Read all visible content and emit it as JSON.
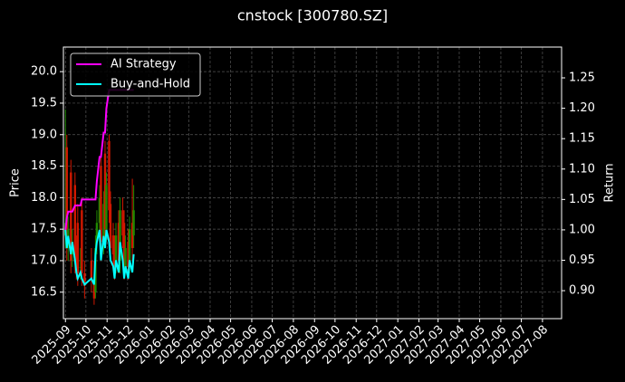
{
  "chart_data": {
    "type": "candlestick",
    "title": "cnstock [300780.SZ]",
    "ylabel": "Price",
    "y2label": "Return",
    "x": [
      "2025-09-01",
      "2025-09-03",
      "2025-09-05",
      "2025-09-09",
      "2025-09-11",
      "2025-09-15",
      "2025-09-17",
      "2025-09-19",
      "2025-09-23",
      "2025-09-25",
      "2025-09-29",
      "2025-10-09",
      "2025-10-13",
      "2025-10-15",
      "2025-10-17",
      "2025-10-21",
      "2025-10-23",
      "2025-10-27",
      "2025-10-29",
      "2025-10-31",
      "2025-11-04",
      "2025-11-06",
      "2025-11-10",
      "2025-11-12",
      "2025-11-14",
      "2025-11-18",
      "2025-11-20",
      "2025-11-24",
      "2025-11-26",
      "2025-11-28",
      "2025-12-02",
      "2025-12-04",
      "2025-12-08",
      "2025-12-10"
    ],
    "open": [
      17.4,
      18.8,
      17.2,
      18.4,
      17.1,
      18.2,
      17.1,
      17.6,
      16.9,
      17.8,
      16.8,
      17.0,
      16.7,
      16.5,
      17.3,
      17.6,
      18.5,
      17.3,
      18.7,
      17.5,
      18.9,
      17.9,
      17.4,
      17.2,
      16.9,
      17.6,
      17.0,
      17.8,
      17.6,
      16.9,
      17.3,
      16.9,
      17.6,
      17.4
    ],
    "high": [
      19.4,
      19.0,
      17.7,
      18.6,
      17.5,
      18.4,
      17.4,
      17.9,
      17.2,
      18.0,
      17.0,
      17.2,
      17.0,
      17.4,
      17.8,
      18.2,
      18.7,
      18.1,
      18.9,
      18.4,
      19.0,
      18.1,
      17.6,
      17.4,
      17.6,
      17.8,
      18.0,
      18.0,
      17.8,
      17.4,
      17.5,
      17.7,
      18.3,
      18.2
    ],
    "low": [
      17.2,
      17.0,
      17.0,
      16.8,
      16.9,
      16.8,
      16.7,
      16.6,
      16.7,
      16.6,
      16.4,
      16.5,
      16.3,
      16.4,
      17.1,
      17.4,
      17.1,
      17.1,
      17.3,
      17.3,
      17.6,
      17.0,
      16.9,
      16.7,
      16.8,
      16.8,
      16.8,
      17.2,
      16.7,
      16.8,
      16.7,
      16.8,
      17.0,
      17.2
    ],
    "close": [
      17.6,
      17.2,
      17.5,
      17.0,
      17.3,
      17.0,
      16.9,
      16.8,
      16.9,
      16.8,
      16.6,
      16.7,
      16.4,
      17.2,
      17.6,
      18.0,
      17.3,
      17.9,
      17.5,
      18.2,
      17.8,
      17.2,
      17.1,
      16.9,
      17.4,
      17.0,
      17.8,
      17.4,
      16.9,
      17.2,
      16.9,
      17.5,
      17.2,
      17.8
    ],
    "up_color": "#1f8a00",
    "down_color": "#d01800",
    "series": [
      {
        "name": "AI Strategy",
        "color": "#ff00ff",
        "axis": "y2",
        "values": [
          1.0,
          1.02,
          1.03,
          1.03,
          1.03,
          1.04,
          1.04,
          1.04,
          1.04,
          1.05,
          1.05,
          1.05,
          1.05,
          1.05,
          1.08,
          1.12,
          1.12,
          1.16,
          1.16,
          1.2,
          1.23,
          1.23,
          1.23,
          1.23,
          1.23,
          1.23,
          1.23,
          1.23,
          1.23,
          1.23,
          1.23,
          1.23,
          1.23,
          1.23
        ]
      },
      {
        "name": "Buy-and-Hold",
        "color": "#00ffff",
        "axis": "y2",
        "values": [
          1.0,
          0.97,
          0.99,
          0.96,
          0.98,
          0.95,
          0.93,
          0.92,
          0.93,
          0.92,
          0.91,
          0.92,
          0.91,
          0.96,
          0.98,
          1.0,
          0.95,
          0.99,
          0.97,
          1.0,
          0.98,
          0.95,
          0.94,
          0.92,
          0.95,
          0.93,
          0.98,
          0.95,
          0.92,
          0.94,
          0.92,
          0.95,
          0.93,
          0.96
        ]
      }
    ],
    "xlim": [
      "2025-08-29",
      "2027-08-29"
    ],
    "xticks": [
      "2025-09",
      "2025-10",
      "2025-11",
      "2025-12",
      "2026-01",
      "2026-02",
      "2026-03",
      "2026-04",
      "2026-05",
      "2026-06",
      "2026-07",
      "2026-08",
      "2026-09",
      "2026-10",
      "2026-11",
      "2026-12",
      "2027-01",
      "2027-02",
      "2027-03",
      "2027-04",
      "2027-05",
      "2027-06",
      "2027-07",
      "2027-08"
    ],
    "ylim": [
      16.08,
      20.39
    ],
    "yticks": [
      16.5,
      {
        "value": 17.0,
        "label": "17.0"
      },
      17.5,
      {
        "value": 18.0,
        "label": "18.0"
      },
      18.5,
      {
        "value": 19.0,
        "label": "19.0"
      },
      19.5,
      {
        "value": 20.0,
        "label": "20.0"
      }
    ],
    "y2lim": [
      0.854,
      1.3006
    ],
    "y2ticks": [
      {
        "value": 0.9,
        "label": "0.90"
      },
      0.95,
      {
        "value": 1.0,
        "label": "1.00"
      },
      1.05,
      {
        "value": 1.1,
        "label": "1.10"
      },
      1.15,
      {
        "value": 1.2,
        "label": "1.20"
      },
      1.25
    ],
    "grid": true,
    "legend": "upper left"
  }
}
